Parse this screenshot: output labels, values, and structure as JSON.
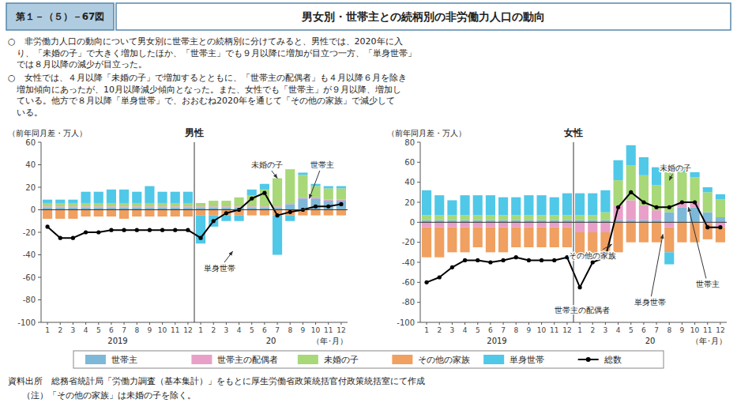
{
  "figure_number": "第１－（５）－67図",
  "title": "男女別・世帯主との続柄別の非労働力人口の動向",
  "text": [
    [
      "○　非労働力人口の動向について男女別に世帯主との続柄別に分けてみると、男性では、2020年に入",
      "　り、「未婚の子」で大きく増加したほか、「世帯主」でも９月以降に増加が目立つ一方、「単身世帯」",
      "　では８月以降の減少が目立った。"
    ],
    [
      "○　女性では、４月以降「未婚の子」で増加するとともに、「世帯主の配偶者」も４月以降６月を除き",
      "　増加傾向にあったが、10月以降減少傾向となった。また、女性でも「世帯主」が９月以降、増加し",
      "　ている。他方で８月以降「単身世帯」で、おおむね2020年を通じて「その他の家族」で減少して",
      "　いる。"
    ]
  ],
  "source": "資料出所　総務省統計局「労働力調査（基本集計）」をもとに厚生労働省政策統括官付政策統括室にて作成",
  "note": "（注）「その他の家族」は未婚の子を除く。",
  "chart_data": [
    {
      "type": "bar",
      "title": "男性",
      "ylabel": "（前年同月差・万人）",
      "xlabel": "（年･月）",
      "x_groups": [
        "2019",
        "20"
      ],
      "categories": [
        "1",
        "2",
        "3",
        "4",
        "5",
        "6",
        "7",
        "8",
        "9",
        "10",
        "11",
        "12",
        "1",
        "2",
        "3",
        "4",
        "5",
        "6",
        "7",
        "8",
        "9",
        "10",
        "11",
        "12"
      ],
      "stacked": true,
      "grid": false,
      "legend": "bottom",
      "ylim": [
        -100,
        60
      ],
      "yticks": [
        -100,
        -80,
        -60,
        -40,
        -20,
        0,
        20,
        40,
        60
      ],
      "series": [
        {
          "name": "世帯主",
          "color": "#7db8d8",
          "values": [
            2,
            2,
            2,
            2,
            2,
            2,
            2,
            2,
            2,
            2,
            2,
            2,
            2,
            2,
            2,
            2,
            2,
            2,
            2,
            5,
            10,
            10,
            8,
            8
          ]
        },
        {
          "name": "世帯主の配偶者",
          "color": "#e8a0c8",
          "values": [
            1,
            1,
            1,
            1,
            1,
            1,
            1,
            1,
            1,
            1,
            1,
            1,
            1,
            1,
            1,
            1,
            1,
            1,
            1,
            1,
            1,
            1,
            1,
            1
          ]
        },
        {
          "name": "未婚の子",
          "color": "#a8d878",
          "values": [
            3,
            3,
            3,
            3,
            3,
            3,
            3,
            3,
            3,
            3,
            3,
            3,
            3,
            5,
            5,
            8,
            10,
            15,
            25,
            30,
            20,
            10,
            10,
            10
          ]
        },
        {
          "name": "その他の家族",
          "color": "#f0a060",
          "values": [
            -8,
            -8,
            -8,
            -6,
            -6,
            -6,
            -8,
            -6,
            -6,
            -6,
            -6,
            -6,
            -5,
            -5,
            -5,
            -5,
            -5,
            -5,
            -5,
            -5,
            -5,
            -5,
            -5,
            -5
          ]
        },
        {
          "name": "単身世帯",
          "color": "#50c8e8",
          "values": [
            3,
            3,
            3,
            10,
            10,
            12,
            12,
            10,
            15,
            10,
            10,
            10,
            -25,
            -10,
            -5,
            -5,
            5,
            5,
            -35,
            -5,
            2,
            2,
            2,
            2
          ]
        },
        {
          "name": "総数",
          "type": "line",
          "marker": "circle",
          "color": "#000000",
          "values": [
            -15,
            -25,
            -25,
            -20,
            -20,
            -18,
            -18,
            -18,
            -18,
            -18,
            -18,
            -18,
            -25,
            -10,
            -3,
            0,
            10,
            15,
            -5,
            -2,
            0,
            3,
            3,
            5
          ]
        }
      ],
      "annotations": [
        {
          "text": "未婚の子",
          "x": 19.0,
          "y": 28,
          "text_x": 18.2,
          "text_y": 40
        },
        {
          "text": "世帯主",
          "x": 21.5,
          "y": 10,
          "text_x": 22.5,
          "text_y": 40
        },
        {
          "text": "単身世帯",
          "x": 15.5,
          "y": -37,
          "text_x": 14.5,
          "text_y": -52
        }
      ]
    },
    {
      "type": "bar",
      "title": "女性",
      "ylabel": "（前年同月差・万人）",
      "xlabel": "（年･月）",
      "x_groups": [
        "2019",
        "20"
      ],
      "categories": [
        "1",
        "2",
        "3",
        "4",
        "5",
        "6",
        "7",
        "8",
        "9",
        "10",
        "11",
        "12",
        "1",
        "2",
        "3",
        "4",
        "5",
        "6",
        "7",
        "8",
        "9",
        "10",
        "11",
        "12"
      ],
      "stacked": true,
      "grid": false,
      "ylim": [
        -100,
        80
      ],
      "yticks": [
        -100,
        -80,
        -60,
        -40,
        -20,
        0,
        20,
        40,
        60,
        80
      ],
      "series": [
        {
          "name": "世帯主",
          "color": "#7db8d8",
          "values": [
            2,
            2,
            2,
            2,
            2,
            2,
            2,
            2,
            2,
            2,
            2,
            2,
            2,
            2,
            2,
            2,
            2,
            2,
            2,
            10,
            15,
            15,
            10,
            5
          ]
        },
        {
          "name": "世帯主の配偶者",
          "color": "#e8a0c8",
          "values": [
            -5,
            -5,
            -5,
            -5,
            -5,
            -5,
            -5,
            -5,
            -5,
            -5,
            -5,
            -5,
            -10,
            -10,
            -10,
            15,
            20,
            15,
            10,
            -5,
            5,
            5,
            -2,
            -5
          ]
        },
        {
          "name": "未婚の子",
          "color": "#a8d878",
          "values": [
            5,
            5,
            5,
            5,
            5,
            5,
            5,
            5,
            5,
            5,
            5,
            5,
            5,
            5,
            8,
            25,
            35,
            30,
            25,
            40,
            30,
            25,
            20,
            18
          ]
        },
        {
          "name": "その他の家族",
          "color": "#f0a060",
          "values": [
            -30,
            -30,
            -25,
            -25,
            -20,
            -25,
            -25,
            -20,
            -20,
            -20,
            -20,
            -20,
            -25,
            -25,
            -20,
            -30,
            -20,
            -20,
            -20,
            -25,
            -20,
            -20,
            -15,
            -15
          ]
        },
        {
          "name": "単身世帯",
          "color": "#50c8e8",
          "values": [
            25,
            20,
            15,
            20,
            20,
            20,
            18,
            18,
            20,
            20,
            18,
            22,
            22,
            22,
            22,
            20,
            20,
            18,
            18,
            -12,
            5,
            5,
            5,
            5
          ]
        },
        {
          "name": "総数",
          "type": "line",
          "marker": "circle",
          "color": "#000000",
          "values": [
            -60,
            -55,
            -45,
            -38,
            -38,
            -40,
            -38,
            -35,
            -38,
            -38,
            -38,
            -35,
            -65,
            -40,
            -35,
            15,
            30,
            20,
            15,
            15,
            20,
            20,
            -5,
            -5
          ]
        }
      ],
      "annotations": [
        {
          "text": "未婚の子",
          "x": 20.0,
          "y": 42,
          "text_x": 20.5,
          "text_y": 54
        },
        {
          "text": "その他の家族",
          "x": 15.5,
          "y": -22,
          "text_x": 14.0,
          "text_y": -33
        },
        {
          "text": "世帯主の配偶者",
          "x": 15.0,
          "y": -83,
          "text_x": 13.2,
          "text_y": -88
        },
        {
          "text": "単身世帯",
          "x": 19.5,
          "y": -12,
          "text_x": 18.5,
          "text_y": -80
        },
        {
          "text": "世帯主",
          "x": 21.5,
          "y": 15,
          "text_x": 23.0,
          "text_y": -62
        }
      ]
    }
  ]
}
